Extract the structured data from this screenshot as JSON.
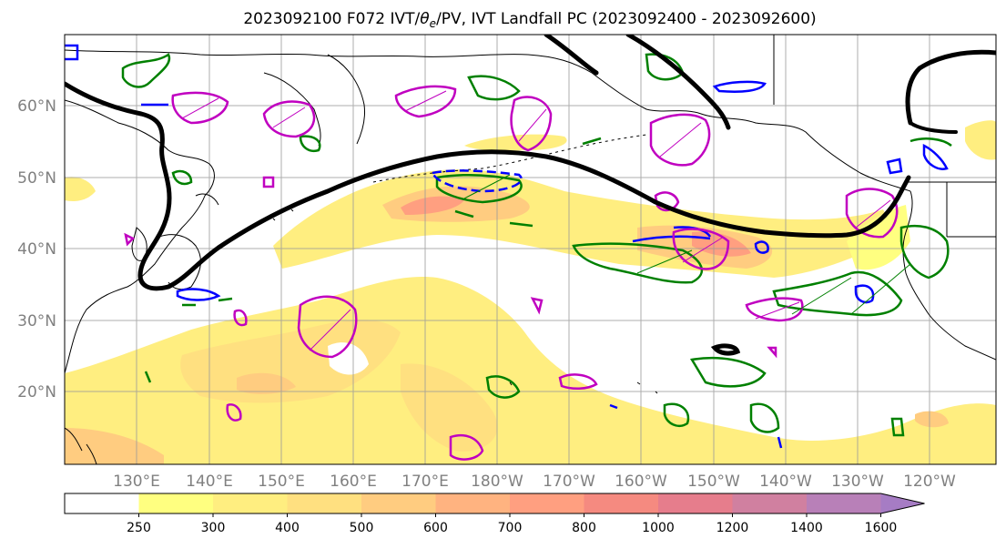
{
  "title": "2023092100 F072 IVT/θe/PV, IVT Landfall PC (2023092400 - 2023092600)",
  "title_parts": {
    "prefix": "2023092100 F072 IVT/",
    "theta": "θ",
    "sub": "e",
    "suffix": "/PV, IVT Landfall PC (2023092400 - 2023092600)"
  },
  "latitudes": [
    "20°N",
    "30°N",
    "40°N",
    "50°N",
    "60°N"
  ],
  "longitudes": [
    "130°E",
    "140°E",
    "150°E",
    "160°E",
    "170°E",
    "180°W",
    "170°W",
    "160°W",
    "150°W",
    "140°W",
    "130°W",
    "120°W"
  ],
  "colorbar": {
    "levels": [
      "250",
      "300",
      "400",
      "500",
      "600",
      "700",
      "800",
      "1000",
      "1200",
      "1400",
      "1600"
    ],
    "colors": [
      "#ffffff",
      "#ffff80",
      "#ffee80",
      "#ffe080",
      "#ffcc80",
      "#ffb380",
      "#ff9f80",
      "#f58a80",
      "#e67d8c",
      "#d080a0",
      "#b880b8",
      "#a67cc4"
    ]
  },
  "legend_colors": {
    "pv_contour": "#000000",
    "theta_e": "#008000",
    "ivt_positive": "#0000ff",
    "landfall_pc": "#c000c0"
  }
}
